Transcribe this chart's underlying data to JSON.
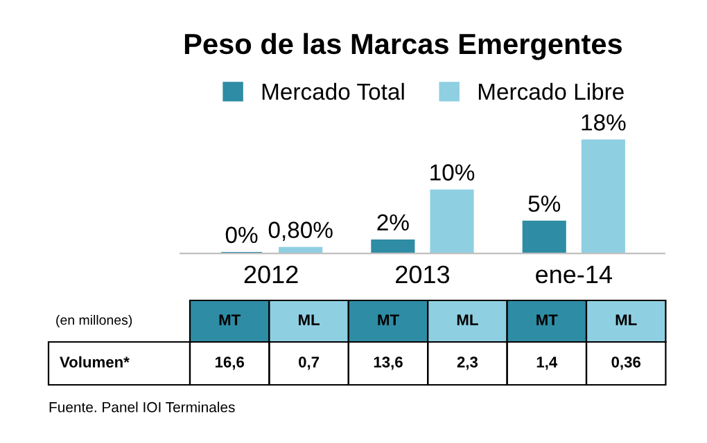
{
  "chart_data": {
    "type": "bar",
    "title": "Peso de las Marcas Emergentes",
    "categories": [
      "2012",
      "2013",
      "ene-14"
    ],
    "series": [
      {
        "name": "Mercado Total",
        "color": "#2e8ca4",
        "values": [
          0,
          2,
          5
        ],
        "value_labels": [
          "0%",
          "2%",
          "5%"
        ]
      },
      {
        "name": "Mercado Libre",
        "color": "#8fcfe2",
        "values": [
          0.8,
          10,
          18
        ],
        "value_labels": [
          "0,80%",
          "10%",
          "18%"
        ]
      }
    ],
    "legend": "top",
    "grid": false,
    "annotations": [
      "(en millones)",
      "MT",
      "ML",
      "MT",
      "ML",
      "MT",
      "ML",
      "Volumen*",
      "16,6",
      "0,7",
      "13,6",
      "2,3",
      "1,4",
      "0,36",
      "Fuente. Panel IOI Terminales"
    ]
  }
}
